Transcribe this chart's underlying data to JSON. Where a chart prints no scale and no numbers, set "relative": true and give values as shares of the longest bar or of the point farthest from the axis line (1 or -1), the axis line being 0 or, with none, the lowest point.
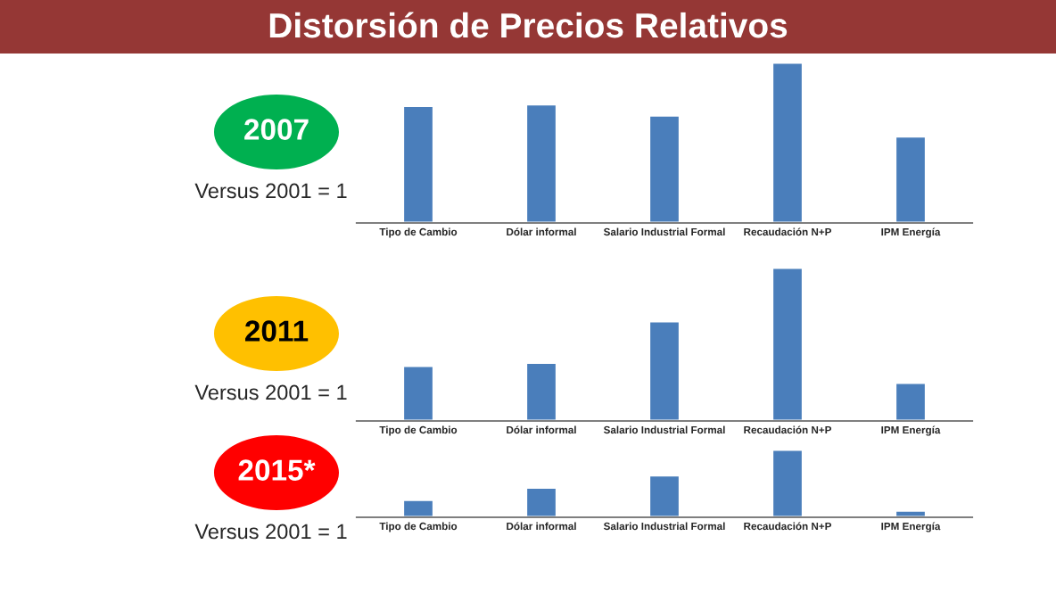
{
  "chart_data": [
    {
      "type": "bar",
      "title": "2007",
      "subtitle": "Versus 2001 = 1",
      "annotations": [
        "Distorsión de Precios Relativos"
      ],
      "relative": true,
      "categories": [
        "Tipo de Cambio",
        "Dólar informal",
        "Salario Industrial Formal",
        "Recaudación N+P",
        "IPM Energía"
      ],
      "values": [
        0.73,
        0.74,
        0.67,
        1,
        0.54
      ],
      "color": "#4a7ebb"
    },
    {
      "type": "bar",
      "title": "2011",
      "subtitle": "Versus 2001 = 1",
      "relative": true,
      "categories": [
        "Tipo de Cambio",
        "Dólar informal",
        "Salario Industrial Formal",
        "Recaudación N+P",
        "IPM Energía"
      ],
      "values": [
        0.36,
        0.38,
        0.65,
        1,
        0.25
      ],
      "color": "#4a7ebb"
    },
    {
      "type": "bar",
      "title": "2015*",
      "subtitle": "Versus 2001 = 1",
      "relative": true,
      "categories": [
        "Tipo de Cambio",
        "Dólar informal",
        "Salario Industrial Formal",
        "Recaudación N+P",
        "IPM Energía"
      ],
      "values": [
        0.26,
        0.44,
        0.62,
        1,
        0.1
      ],
      "color": "#4a7ebb"
    }
  ]
}
